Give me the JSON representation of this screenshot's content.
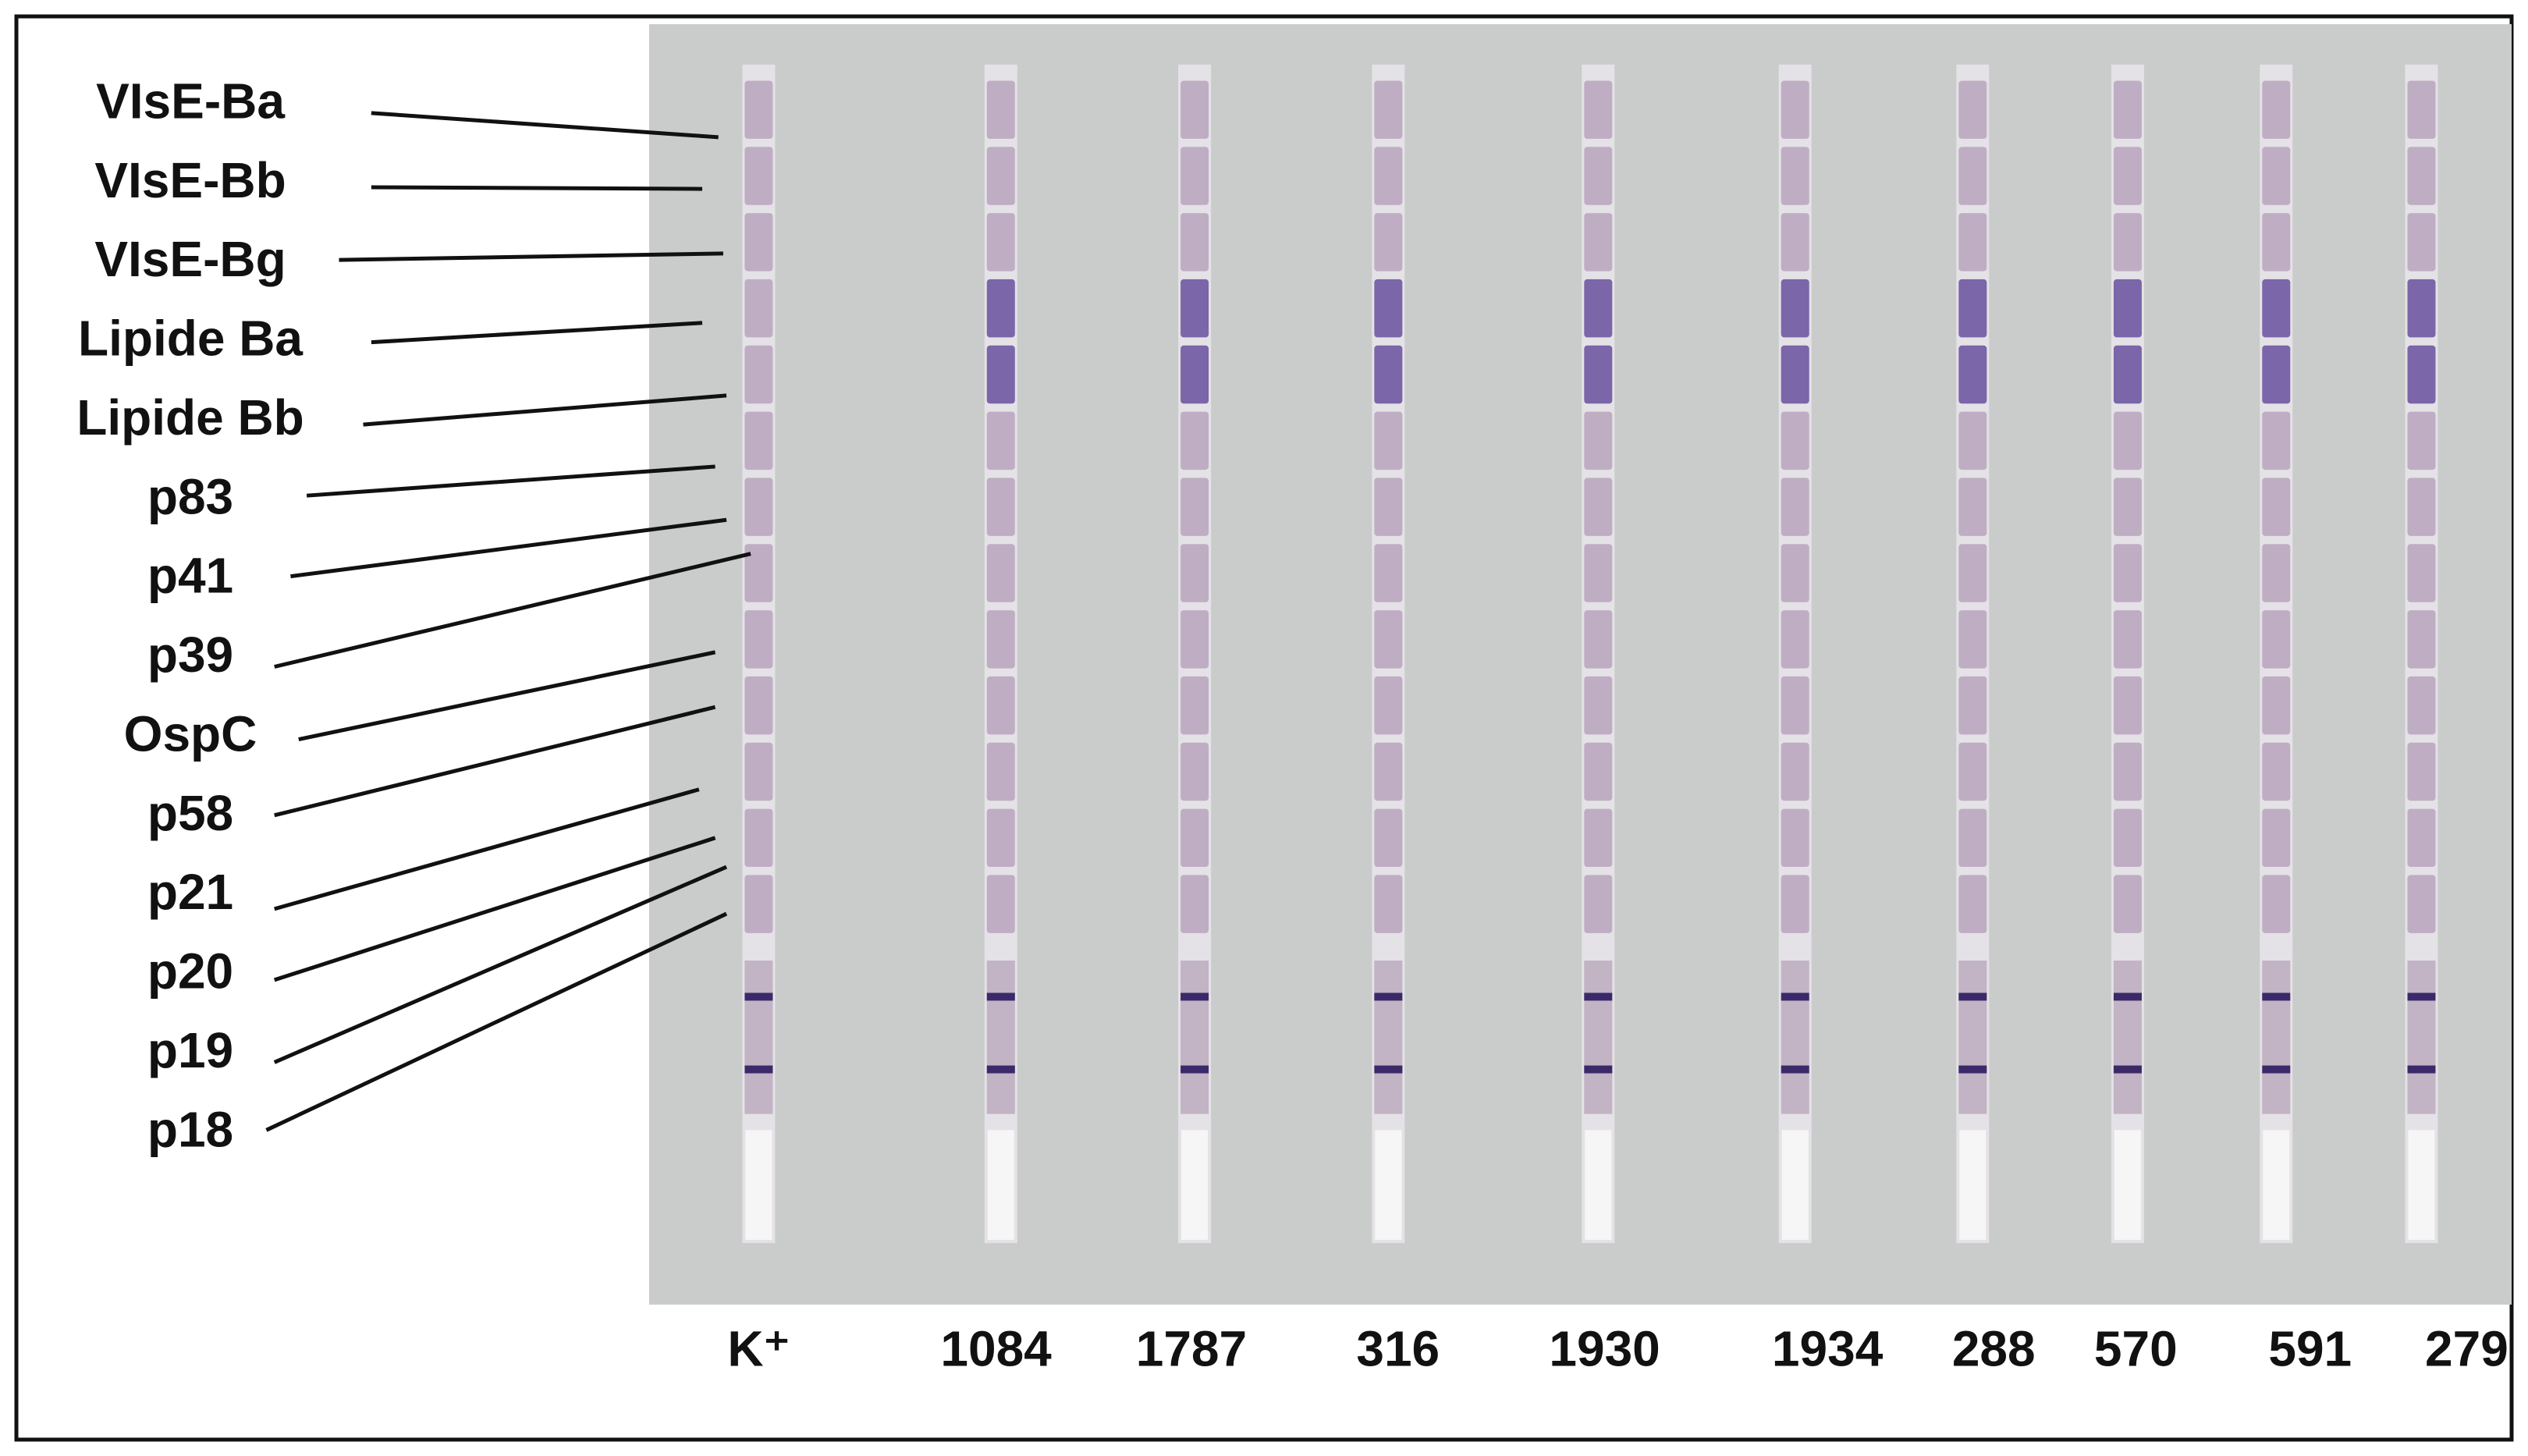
{
  "antigens": [
    "VIsE-Ba",
    "VIsE-Bb",
    "VIsE-Bg",
    "Lipide Ba",
    "Lipide Bb",
    "p83",
    "p41",
    "p39",
    "OspC",
    "p58",
    "p21",
    "p20",
    "p19",
    "p18"
  ],
  "strips": [
    "K⁺",
    "1084",
    "1787",
    "316",
    "1930",
    "1934",
    "288",
    "570",
    "591",
    "279"
  ]
}
